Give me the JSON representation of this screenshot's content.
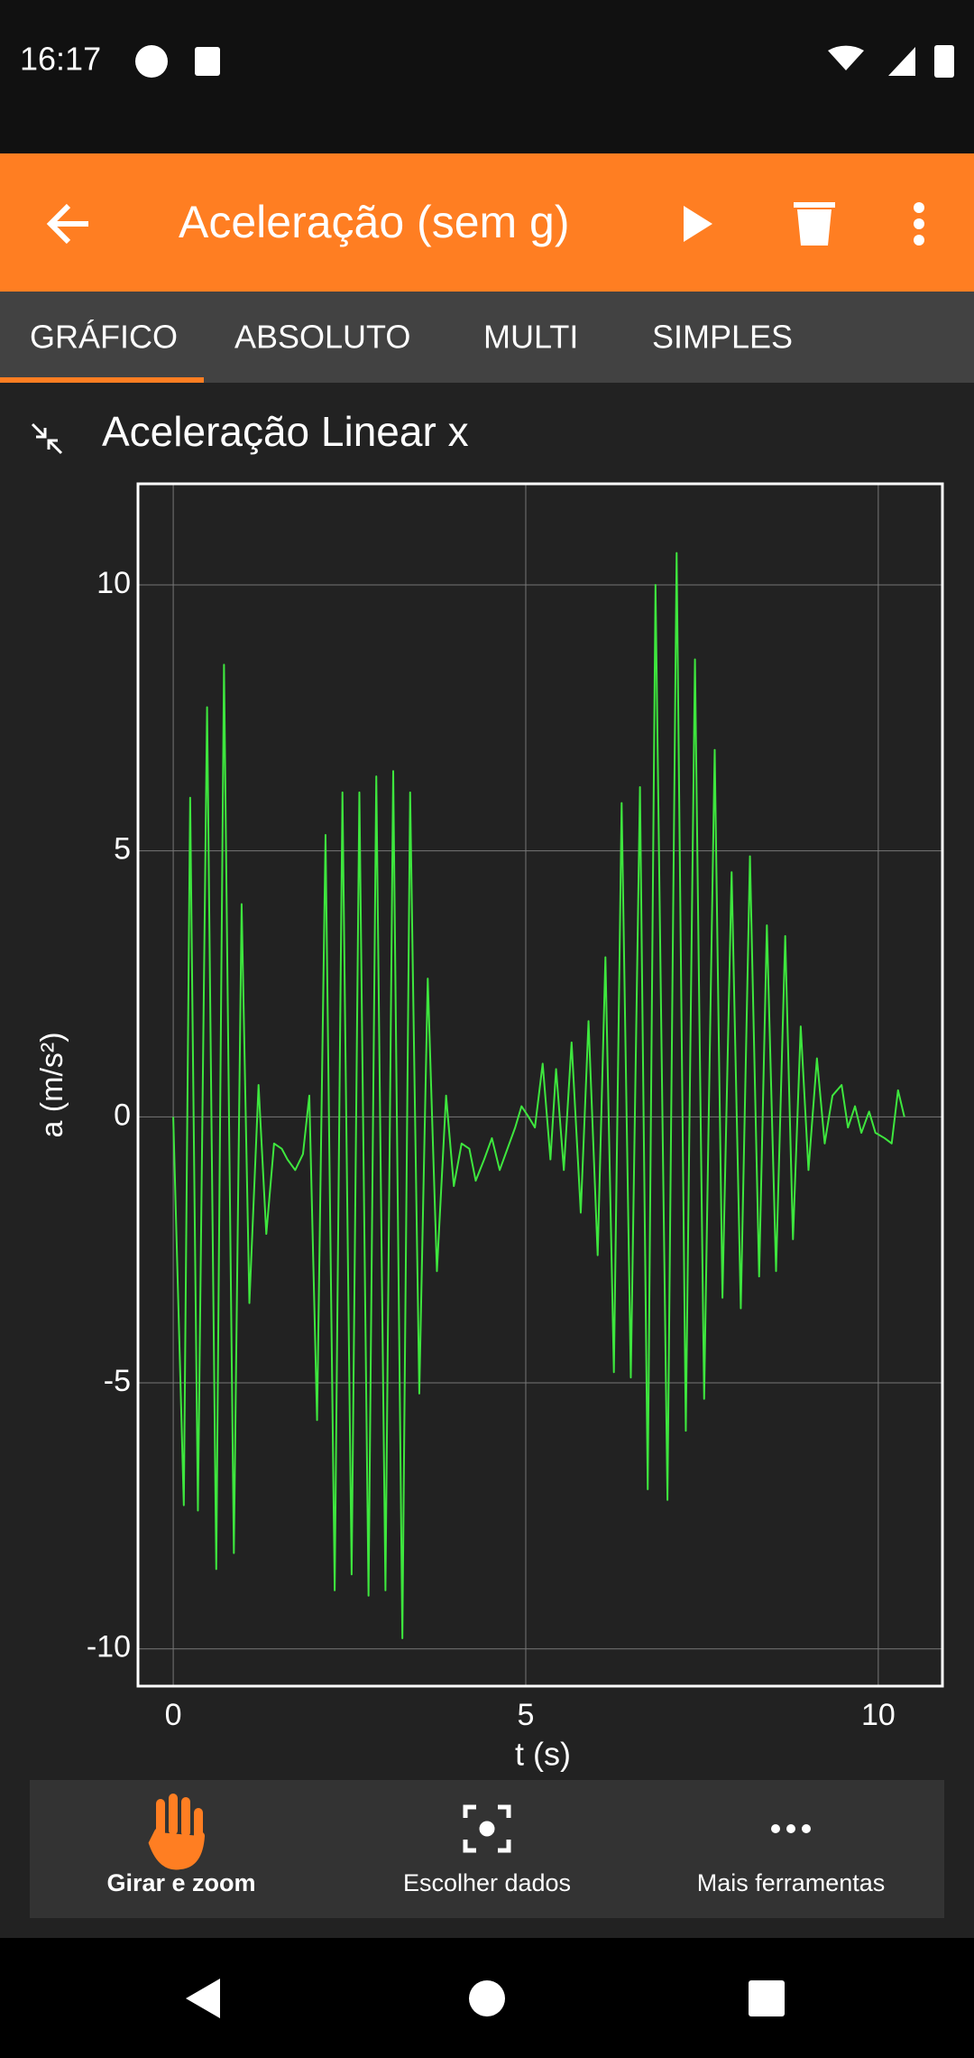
{
  "status_bar": {
    "time": "16:17"
  },
  "toolbar": {
    "title": "Aceleração (sem g)"
  },
  "tabs": [
    "GRÁFICO",
    "ABSOLUTO",
    "MULTI",
    "SIMPLES"
  ],
  "chart_data": {
    "type": "line",
    "title": "Aceleração Linear x",
    "x_label": "t (s)",
    "y_label": "a (m/s²)",
    "xlim": [
      -0.5,
      10.91
    ],
    "ylim": [
      -10.7,
      11.9
    ],
    "xticks": [
      0,
      5,
      10
    ],
    "yticks": [
      10,
      5,
      0,
      -5,
      -10
    ],
    "grid": true,
    "color": "#3ee63e",
    "x": [
      0,
      0.15,
      0.24,
      0.35,
      0.48,
      0.61,
      0.72,
      0.86,
      0.97,
      1.08,
      1.21,
      1.32,
      1.43,
      1.54,
      1.62,
      1.73,
      1.84,
      1.93,
      2.04,
      2.16,
      2.29,
      2.4,
      2.53,
      2.64,
      2.77,
      2.88,
      3.01,
      3.12,
      3.25,
      3.36,
      3.49,
      3.61,
      3.74,
      3.87,
      3.98,
      4.09,
      4.2,
      4.29,
      4.41,
      4.52,
      4.63,
      4.74,
      4.85,
      4.94,
      5.04,
      5.13,
      5.24,
      5.35,
      5.43,
      5.54,
      5.65,
      5.78,
      5.89,
      6.02,
      6.13,
      6.25,
      6.36,
      6.49,
      6.62,
      6.73,
      6.84,
      7.01,
      7.14,
      7.27,
      7.4,
      7.53,
      7.68,
      7.79,
      7.92,
      8.05,
      8.18,
      8.31,
      8.42,
      8.55,
      8.68,
      8.79,
      8.9,
      9.01,
      9.13,
      9.24,
      9.35,
      9.48,
      9.57,
      9.67,
      9.76,
      9.87,
      9.96,
      10.09,
      10.19,
      10.28,
      10.37
    ],
    "values": [
      0,
      -7.3,
      6.0,
      -7.4,
      7.7,
      -8.5,
      8.5,
      -8.2,
      4.0,
      -3.5,
      0.6,
      -2.2,
      -0.5,
      -0.6,
      -0.8,
      -1.0,
      -0.7,
      0.4,
      -5.7,
      5.3,
      -8.9,
      6.1,
      -8.6,
      6.1,
      -9.0,
      6.4,
      -8.9,
      6.5,
      -9.8,
      6.1,
      -5.2,
      2.6,
      -2.9,
      0.4,
      -1.3,
      -0.5,
      -0.6,
      -1.2,
      -0.8,
      -0.4,
      -1.0,
      -0.6,
      -0.2,
      0.2,
      0.0,
      -0.2,
      1.0,
      -0.8,
      0.9,
      -1.0,
      1.4,
      -1.8,
      1.8,
      -2.6,
      3.0,
      -4.8,
      5.9,
      -4.9,
      6.2,
      -7.0,
      10.0,
      -7.2,
      10.6,
      -5.9,
      8.6,
      -5.3,
      6.9,
      -3.4,
      4.6,
      -3.6,
      4.9,
      -3.0,
      3.6,
      -2.9,
      3.4,
      -2.3,
      1.7,
      -1.0,
      1.1,
      -0.5,
      0.4,
      0.6,
      -0.2,
      0.2,
      -0.3,
      0.1,
      -0.3,
      -0.4,
      -0.5,
      0.5,
      0.0
    ]
  },
  "bottom_bar": {
    "tools": [
      "Girar e zoom",
      "Escolher dados",
      "Mais ferramentas"
    ]
  }
}
